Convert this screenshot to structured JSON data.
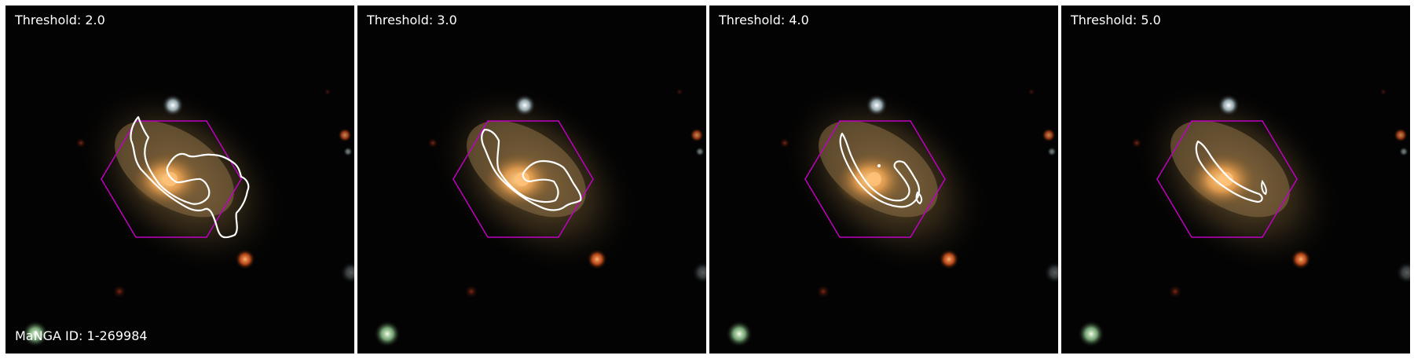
{
  "panels": [
    {
      "threshold_label": "Threshold: 2.0",
      "id_label": "MaNGA ID: 1-269984"
    },
    {
      "threshold_label": "Threshold: 3.0",
      "id_label": ""
    },
    {
      "threshold_label": "Threshold: 4.0",
      "id_label": ""
    },
    {
      "threshold_label": "Threshold: 5.0",
      "id_label": ""
    }
  ],
  "colors": {
    "hexagon": "#c000c0",
    "contour": "#ffffff",
    "background": "#030303"
  }
}
